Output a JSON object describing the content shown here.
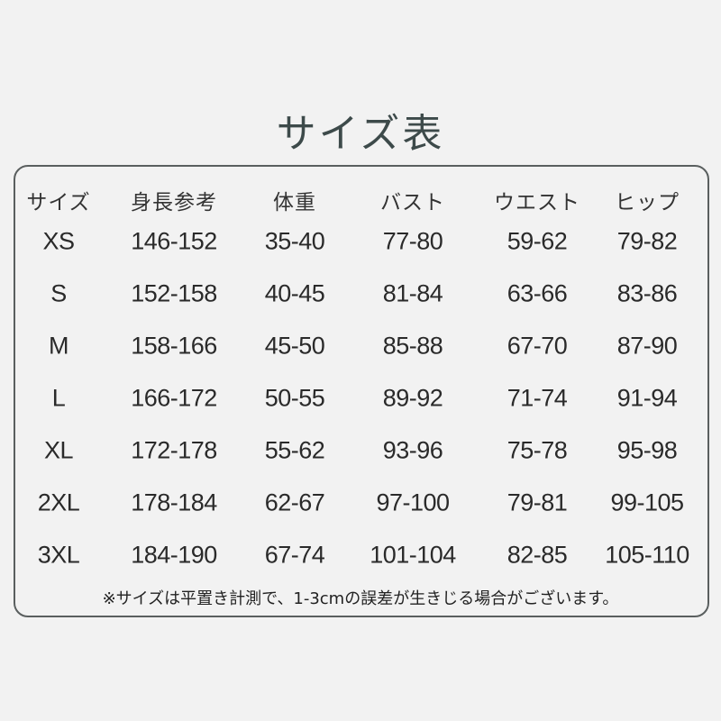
{
  "title": "サイズ表",
  "table": {
    "headers": [
      "サイズ",
      "身長参考",
      "体重",
      "バスト",
      "ウエスト",
      "ヒップ"
    ],
    "rows": [
      [
        "XS",
        "146-152",
        "35-40",
        "77-80",
        "59-62",
        "79-82"
      ],
      [
        "S",
        "152-158",
        "40-45",
        "81-84",
        "63-66",
        "83-86"
      ],
      [
        "M",
        "158-166",
        "45-50",
        "85-88",
        "67-70",
        "87-90"
      ],
      [
        "L",
        "166-172",
        "50-55",
        "89-92",
        "71-74",
        "91-94"
      ],
      [
        "XL",
        "172-178",
        "55-62",
        "93-96",
        "75-78",
        "95-98"
      ],
      [
        "2XL",
        "178-184",
        "62-67",
        "97-100",
        "79-81",
        "99-105"
      ],
      [
        "3XL",
        "184-190",
        "67-74",
        "101-104",
        "82-85",
        "105-110"
      ]
    ]
  },
  "note": "※サイズは平置き計測で、1-3cmの誤差が生きじる場合がございます。"
}
